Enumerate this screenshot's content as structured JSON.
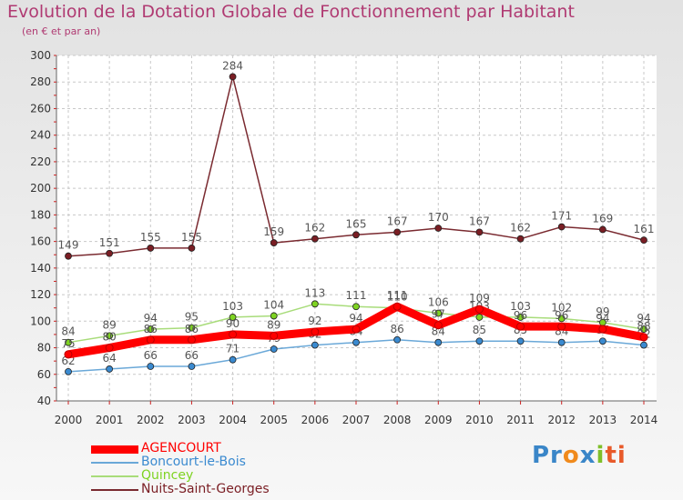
{
  "title": "Evolution de la Dotation Globale de Fonctionnement par Habitant",
  "subtitle": "(en € et par an)",
  "logo": {
    "p1": "Pr",
    "p2": "o",
    "p3": "x",
    "p4": "i",
    "p5": "ti"
  },
  "chart_data": {
    "type": "line",
    "title": "Evolution de la Dotation Globale de Fonctionnement par Habitant",
    "ylabel": "(en € et par an)",
    "xlabel": "",
    "x": [
      "2000",
      "2001",
      "2002",
      "2003",
      "2004",
      "2005",
      "2006",
      "2007",
      "2008",
      "2009",
      "2010",
      "2011",
      "2012",
      "2013",
      "2014"
    ],
    "ylim": [
      40,
      300
    ],
    "yticks": [
      40,
      60,
      80,
      100,
      120,
      140,
      160,
      180,
      200,
      220,
      240,
      260,
      280,
      300
    ],
    "legend_position": "bottom-left",
    "series": [
      {
        "name": "Nuits-Saint-Georges",
        "color": "#7a1e24",
        "line_color": "#7a2a30",
        "stroke": "thin",
        "values": [
          149,
          151,
          155,
          155,
          284,
          159,
          162,
          165,
          167,
          170,
          167,
          162,
          171,
          169,
          161
        ]
      },
      {
        "name": "Quincey",
        "color": "#7ed321",
        "line_color": "#a8dc7a",
        "stroke": "thin",
        "values": [
          84,
          89,
          94,
          95,
          103,
          104,
          113,
          111,
          110,
          106,
          103,
          103,
          102,
          99,
          94
        ]
      },
      {
        "name": "Boncourt-le-Bois",
        "color": "#3a8ad0",
        "line_color": "#6aa8d8",
        "stroke": "thin",
        "values": [
          62,
          64,
          66,
          66,
          71,
          79,
          82,
          84,
          86,
          84,
          85,
          85,
          84,
          85,
          82
        ]
      },
      {
        "name": "AGENCOURT",
        "color": "#ff0000",
        "line_color": "#ff0000",
        "stroke": "thick",
        "values": [
          75,
          80,
          86,
          86,
          90,
          89,
          92,
          94,
          111,
          97,
          109,
          96,
          96,
          94,
          88
        ]
      }
    ],
    "legend_order": [
      "AGENCOURT",
      "Boncourt-le-Bois",
      "Quincey",
      "Nuits-Saint-Georges"
    ]
  }
}
